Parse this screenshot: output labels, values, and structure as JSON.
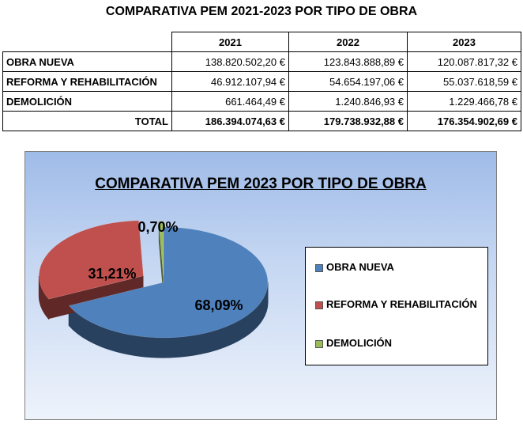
{
  "table": {
    "title": "COMPARATIVA PEM 2021-2023 POR TIPO DE OBRA",
    "years": [
      "2021",
      "2022",
      "2023"
    ],
    "rows": [
      {
        "label": "OBRA NUEVA",
        "values": [
          "138.820.502,20 €",
          "123.843.888,89 €",
          "120.087.817,32 €"
        ]
      },
      {
        "label": "REFORMA Y REHABILITACIÓN",
        "values": [
          "46.912.107,94 €",
          "54.654.197,06 €",
          "55.037.618,59 €"
        ]
      },
      {
        "label": "DEMOLICIÓN",
        "values": [
          "661.464,49 €",
          "1.240.846,93 €",
          "1.229.466,78 €"
        ]
      }
    ],
    "total": {
      "label": "TOTAL",
      "values": [
        "186.394.074,63 €",
        "179.738.932,88 €",
        "176.354.902,69 €"
      ]
    }
  },
  "chart_data": {
    "type": "pie",
    "title": "COMPARATIVA PEM 2023 POR TIPO DE OBRA",
    "slices": [
      {
        "name": "OBRA NUEVA",
        "value": 68.09,
        "label": "68,09%",
        "color": "#4f81bd"
      },
      {
        "name": "REFORMA Y REHABILITACIÓN",
        "value": 31.21,
        "label": "31,21%",
        "color": "#c0504d"
      },
      {
        "name": "DEMOLICIÓN",
        "value": 0.7,
        "label": "0,70%",
        "color": "#9bbb59"
      }
    ],
    "legend_position": "right",
    "exploded": true,
    "three_d": true
  }
}
